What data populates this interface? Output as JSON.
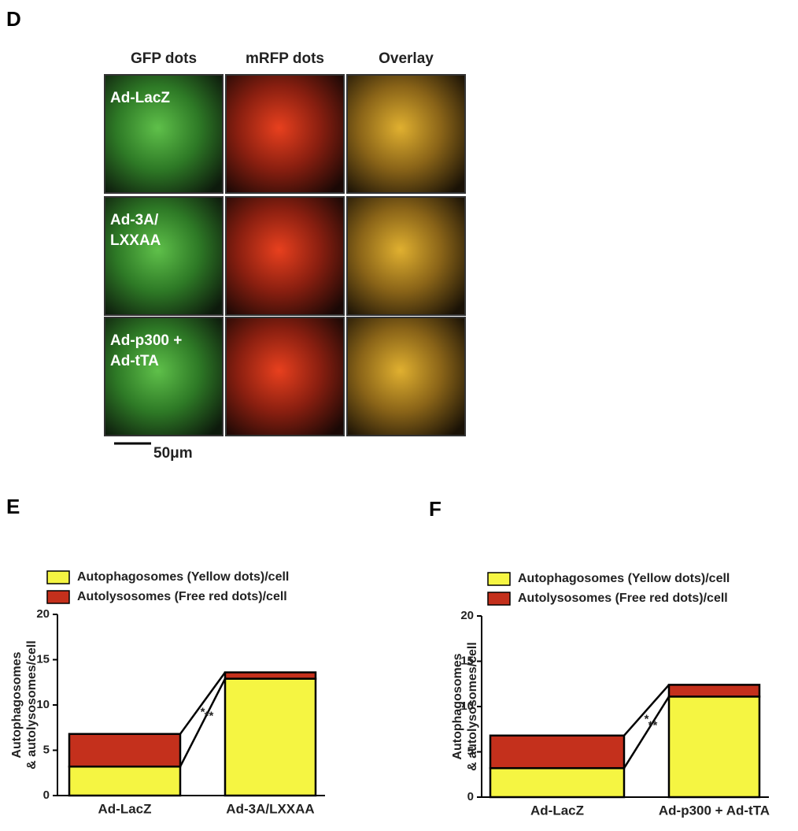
{
  "panel_d": {
    "label": "D",
    "columns": [
      "GFP dots",
      "mRFP dots",
      "Overlay"
    ],
    "rows": [
      [
        "Ad-LacZ"
      ],
      [
        "Ad-3A/",
        "LXXAA"
      ],
      [
        "Ad-p300 +",
        "Ad-tTA"
      ]
    ],
    "scale_bar": "50μm"
  },
  "chart_data": [
    {
      "type": "bar",
      "stacked": true,
      "panel_label": "E",
      "ylabel": [
        "Autophagosomes",
        "& autolysosomes/cell"
      ],
      "categories": [
        "Ad-LacZ",
        "Ad-3A/LXXAA"
      ],
      "series": [
        {
          "name": "Autophagosomes (Yellow dots)/cell",
          "color": "#f5f542",
          "values": [
            3.2,
            12.9
          ]
        },
        {
          "name": "Autolysosomes (Free red dots)/cell",
          "color": "#c4301c",
          "values": [
            3.6,
            0.7
          ]
        }
      ],
      "ylim": [
        0,
        20
      ],
      "yticks": [
        0,
        5,
        10,
        15,
        20
      ],
      "annotations": [
        "*",
        "**"
      ]
    },
    {
      "type": "bar",
      "stacked": true,
      "panel_label": "F",
      "ylabel": [
        "Autophagosomes",
        "& autolysosomes/cell"
      ],
      "categories": [
        "Ad-LacZ",
        "Ad-p300 + Ad-tTA"
      ],
      "series": [
        {
          "name": "Autophagosomes (Yellow dots)/cell",
          "color": "#f5f542",
          "values": [
            3.2,
            11.1
          ]
        },
        {
          "name": "Autolysosomes (Free red dots)/cell",
          "color": "#c4301c",
          "values": [
            3.6,
            1.3
          ]
        }
      ],
      "ylim": [
        0,
        20
      ],
      "yticks": [
        0,
        5,
        10,
        15,
        20
      ],
      "annotations": [
        "*",
        "**"
      ]
    }
  ]
}
